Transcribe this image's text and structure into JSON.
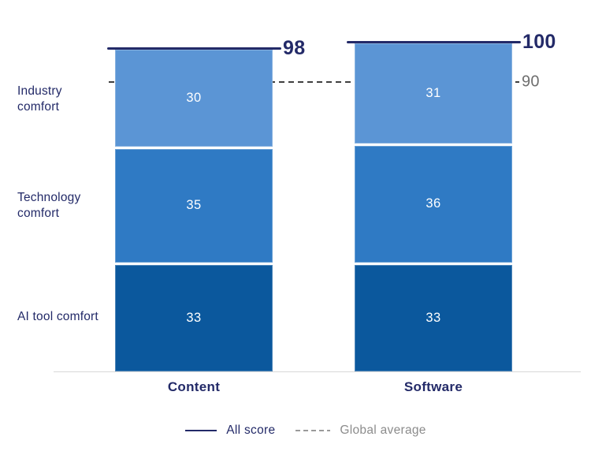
{
  "chart_data": {
    "type": "bar",
    "variant": "stacked-column",
    "categories": [
      "Content",
      "Software"
    ],
    "series": [
      {
        "name": "Industry comfort",
        "values": [
          30,
          31
        ],
        "color": "#5B95D5"
      },
      {
        "name": "Technology comfort",
        "values": [
          35,
          36
        ],
        "color": "#2F7AC4"
      },
      {
        "name": "AI tool comfort",
        "values": [
          33,
          33
        ],
        "color": "#0B589D"
      }
    ],
    "totals": {
      "label": "All score",
      "values": [
        98,
        100
      ],
      "color": "#232A68"
    },
    "global_average": {
      "label": "Global average",
      "value": 90
    },
    "legend": [
      "All score",
      "Global average"
    ],
    "legend_position": "bottom",
    "grid": false,
    "ylim": [
      0,
      100
    ],
    "value_labels": "inside-white",
    "row_labels": [
      "Industry comfort",
      "Technology comfort",
      "AI tool comfort"
    ]
  },
  "colors": {
    "background": "#FFFFFF",
    "navy_accent": "#232A68",
    "segment_light": "#5B95D5",
    "segment_medium": "#2F7AC4",
    "segment_dark": "#0B589D",
    "dashed_line": "#3F3F3F",
    "average_label_gray": "#6E6E6E",
    "legend_gray": "#8C8C8C",
    "axis_gray": "#D8D8D8"
  }
}
